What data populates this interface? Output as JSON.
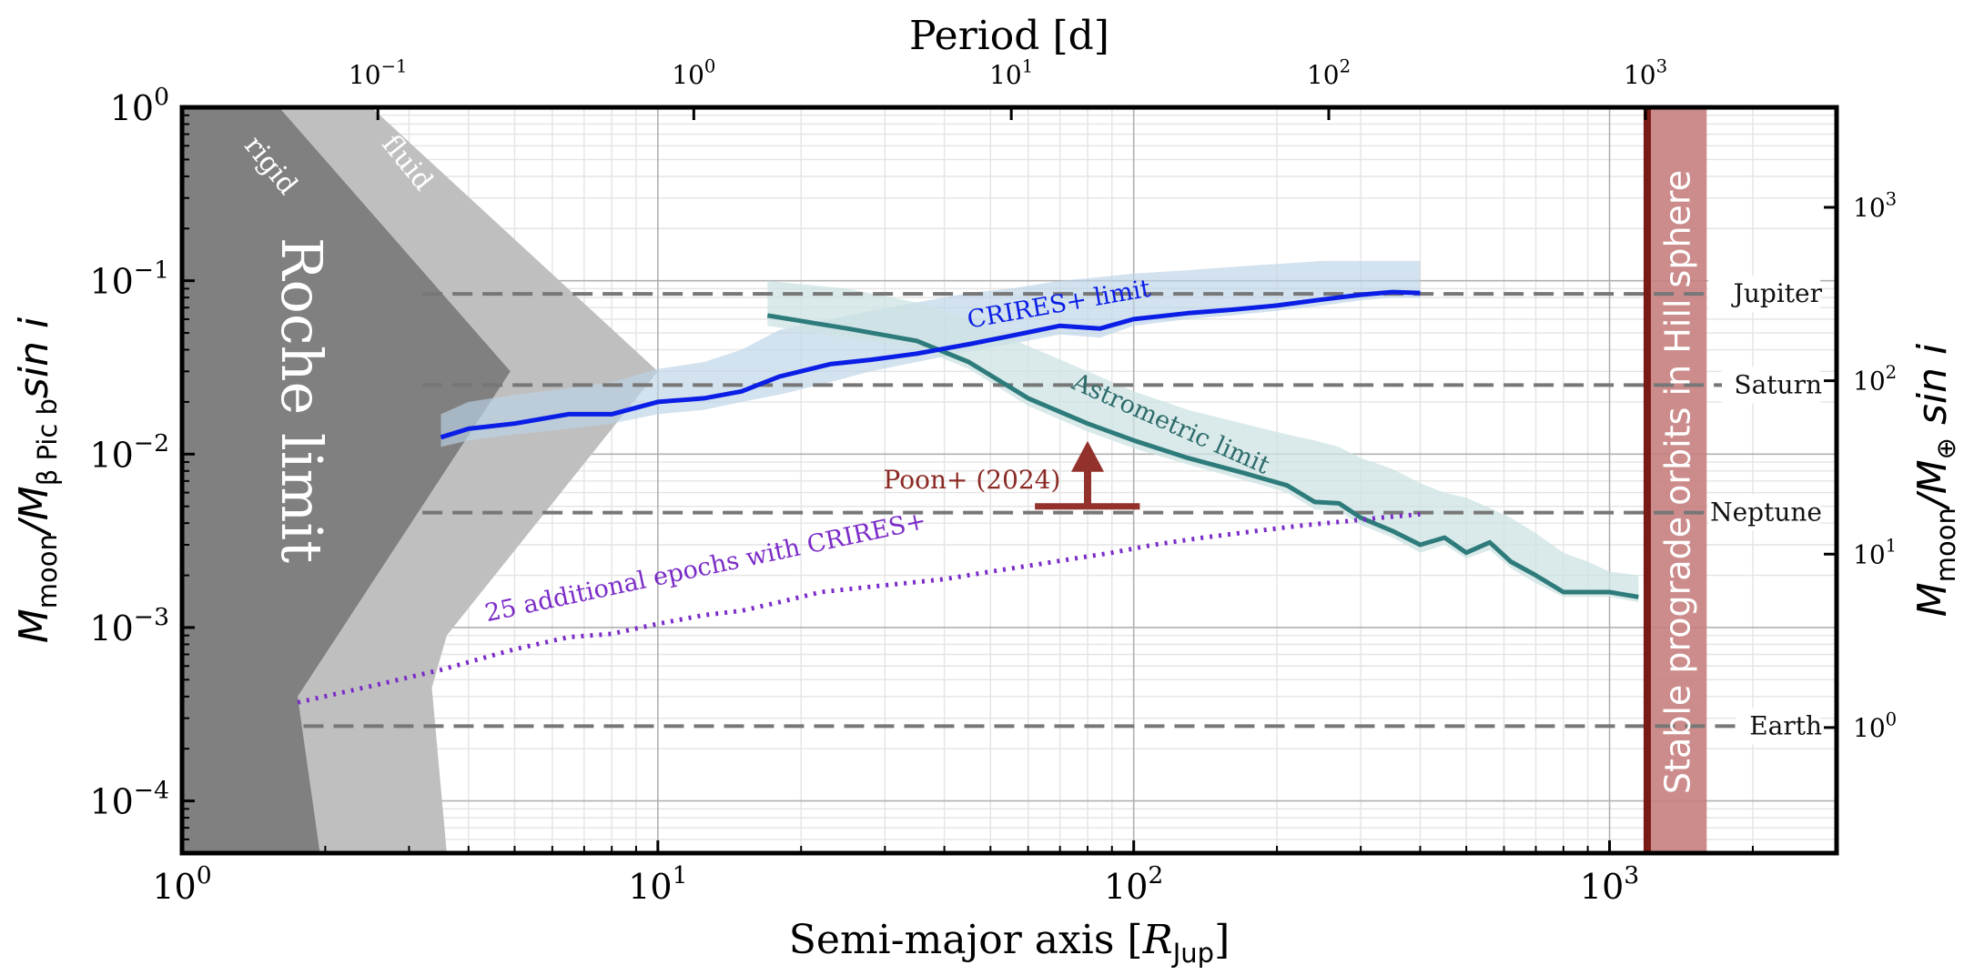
{
  "chart_data": {
    "type": "line",
    "xlabel_pre": "Semi-major axis [",
    "xlabel_sym": "R",
    "xlabel_sub": "Jup",
    "xlabel_post": "]",
    "ylabel_left_pre": "M",
    "ylabel_left_sub1": "moon",
    "ylabel_left_mid": "/M",
    "ylabel_left_sub2": "β Pic b",
    "ylabel_left_post": "sin i",
    "ylabel_right_pre": "M",
    "ylabel_right_sub1": "moon",
    "ylabel_right_mid": "/M",
    "ylabel_right_sub2": "⊕",
    "ylabel_right_post": " sin i",
    "top_axis_label": "Period [d]",
    "x_scale": "log",
    "y_scale": "log",
    "xlim": [
      1,
      3000
    ],
    "ylim": [
      5e-05,
      1
    ],
    "grid": true,
    "x_ticks": [
      {
        "mantissa": "10",
        "exp": "0",
        "value": 1
      },
      {
        "mantissa": "10",
        "exp": "1",
        "value": 10
      },
      {
        "mantissa": "10",
        "exp": "2",
        "value": 100
      },
      {
        "mantissa": "10",
        "exp": "3",
        "value": 1000
      }
    ],
    "y_ticks": [
      {
        "mantissa": "10",
        "exp": "0",
        "value": 1
      },
      {
        "mantissa": "10",
        "exp": "−1",
        "value": 0.1
      },
      {
        "mantissa": "10",
        "exp": "−2",
        "value": 0.01
      },
      {
        "mantissa": "10",
        "exp": "−3",
        "value": 0.001
      },
      {
        "mantissa": "10",
        "exp": "−4",
        "value": 0.0001
      }
    ],
    "top_ticks": [
      {
        "mantissa": "10",
        "exp": "−1",
        "a": 2.58
      },
      {
        "mantissa": "10",
        "exp": "0",
        "a": 11.9
      },
      {
        "mantissa": "10",
        "exp": "1",
        "a": 55.3
      },
      {
        "mantissa": "10",
        "exp": "2",
        "a": 257
      },
      {
        "mantissa": "10",
        "exp": "3",
        "a": 1190
      }
    ],
    "right_ticks": [
      {
        "mantissa": "10",
        "exp": "0",
        "y": 0.000265
      },
      {
        "mantissa": "10",
        "exp": "1",
        "y": 0.00265
      },
      {
        "mantissa": "10",
        "exp": "2",
        "y": 0.0265
      },
      {
        "mantissa": "10",
        "exp": "3",
        "y": 0.265
      }
    ],
    "reference_planets": [
      {
        "name": "Jupiter",
        "y": 0.084,
        "x_start": 3.2,
        "x_end": 1900
      },
      {
        "name": "Saturn",
        "y": 0.025,
        "x_start": 3.2,
        "x_end": 1900
      },
      {
        "name": "Neptune",
        "y": 0.0046,
        "x_start": 3.2,
        "x_end": 1900
      },
      {
        "name": "Earth",
        "y": 0.00027,
        "x_start": 1.8,
        "x_end": 1900
      }
    ],
    "regions": {
      "roche_rigid_label": "rigid",
      "roche_fluid_label": "fluid",
      "roche_label": "Roche limit",
      "roche_rigid_polygon": [
        [
          1,
          1
        ],
        [
          1.6,
          1
        ],
        [
          4.9,
          0.03
        ],
        [
          1.75,
          0.0004
        ],
        [
          1.95,
          5e-05
        ],
        [
          1,
          5e-05
        ]
      ],
      "roche_fluid_polygon": [
        [
          1.6,
          1
        ],
        [
          2.5,
          1
        ],
        [
          10.0,
          0.03
        ],
        [
          3.6,
          0.0009
        ],
        [
          3.35,
          0.00045
        ],
        [
          3.6,
          5e-05
        ],
        [
          1.95,
          5e-05
        ],
        [
          1.75,
          0.0004
        ],
        [
          4.9,
          0.03
        ]
      ],
      "hill_label": "Stable prograde orbits in Hill sphere",
      "hill_line_x": 1200,
      "hill_band_x": [
        1200,
        1600
      ],
      "colors": {
        "rigid": "#808080",
        "fluid": "#bfbfbf",
        "hill_line": "#7a1a16",
        "hill_band": "#c88080"
      }
    },
    "series": [
      {
        "name": "CRIRES+ limit",
        "color": "#0a1ee6",
        "band_color": "#bcd2e6",
        "x": [
          3.5,
          4,
          5,
          6.5,
          8,
          10,
          12.5,
          15,
          18,
          23,
          28,
          35,
          45,
          55,
          70,
          85,
          100,
          130,
          160,
          200,
          250,
          300,
          350,
          400
        ],
        "y": [
          0.0125,
          0.014,
          0.015,
          0.017,
          0.017,
          0.02,
          0.021,
          0.023,
          0.028,
          0.033,
          0.035,
          0.038,
          0.043,
          0.048,
          0.055,
          0.053,
          0.06,
          0.065,
          0.068,
          0.072,
          0.078,
          0.083,
          0.086,
          0.085
        ],
        "y_upper": [
          0.017,
          0.02,
          0.022,
          0.024,
          0.026,
          0.031,
          0.034,
          0.04,
          0.052,
          0.06,
          0.067,
          0.075,
          0.085,
          0.09,
          0.1,
          0.105,
          0.11,
          0.115,
          0.12,
          0.125,
          0.13,
          0.13,
          0.13,
          0.13
        ],
        "y_lower": [
          0.011,
          0.012,
          0.013,
          0.014,
          0.015,
          0.017,
          0.018,
          0.02,
          0.022,
          0.026,
          0.03,
          0.034,
          0.039,
          0.043,
          0.049,
          0.047,
          0.055,
          0.06,
          0.063,
          0.067,
          0.072,
          0.077,
          0.08,
          0.08
        ]
      },
      {
        "name": "Astrometric limit",
        "color": "#2e7b7b",
        "band_color": "#cde3e3",
        "x": [
          17,
          25,
          35,
          45,
          60,
          80,
          100,
          130,
          170,
          210,
          240,
          270,
          300,
          350,
          400,
          450,
          500,
          560,
          620,
          700,
          800,
          900,
          1000,
          1150
        ],
        "y": [
          0.063,
          0.053,
          0.045,
          0.034,
          0.021,
          0.015,
          0.012,
          0.0095,
          0.0078,
          0.0066,
          0.0053,
          0.0052,
          0.0043,
          0.0036,
          0.003,
          0.0033,
          0.0027,
          0.0031,
          0.0024,
          0.002,
          0.0016,
          0.0016,
          0.0016,
          0.0015
        ],
        "y_upper": [
          0.1,
          0.09,
          0.075,
          0.06,
          0.042,
          0.03,
          0.023,
          0.018,
          0.015,
          0.013,
          0.012,
          0.011,
          0.0095,
          0.0082,
          0.0068,
          0.006,
          0.0056,
          0.0049,
          0.0043,
          0.0035,
          0.0027,
          0.0024,
          0.0021,
          0.002
        ],
        "y_lower": [
          0.055,
          0.047,
          0.041,
          0.031,
          0.019,
          0.0135,
          0.0108,
          0.0087,
          0.0071,
          0.006,
          0.0048,
          0.0047,
          0.0039,
          0.0033,
          0.0027,
          0.003,
          0.0025,
          0.0028,
          0.0022,
          0.0018,
          0.0015,
          0.0015,
          0.0015,
          0.0014
        ]
      },
      {
        "name": "25 additional epochs with CRIRES+",
        "color": "#7b2cc8",
        "style": "dotted",
        "x": [
          1.75,
          2.5,
          3.5,
          5,
          6.5,
          8,
          10,
          12.5,
          15,
          18,
          22,
          27,
          33,
          40,
          50,
          62,
          75,
          90,
          110,
          140,
          180,
          230,
          280,
          330,
          400
        ],
        "y": [
          0.00037,
          0.00046,
          0.00057,
          0.00075,
          0.00088,
          0.00092,
          0.00105,
          0.00118,
          0.00125,
          0.0014,
          0.0016,
          0.0017,
          0.0018,
          0.0019,
          0.0021,
          0.0023,
          0.0025,
          0.0027,
          0.003,
          0.0033,
          0.0036,
          0.0039,
          0.0041,
          0.0043,
          0.0045
        ]
      }
    ],
    "annotations": [
      {
        "text": "CRIRES+ limit",
        "color": "#0a1ee6"
      },
      {
        "text": "Astrometric limit",
        "color": "#2e6b6b"
      },
      {
        "text": "25 additional epochs with CRIRES+",
        "color": "#7b2cc8"
      },
      {
        "text": "Poon+ (2024)",
        "color": "#8b2a24"
      }
    ],
    "poon_2024": {
      "x": 80,
      "x_range": [
        62,
        103
      ],
      "y_lower_limit": 0.005,
      "color": "#93322c"
    }
  }
}
